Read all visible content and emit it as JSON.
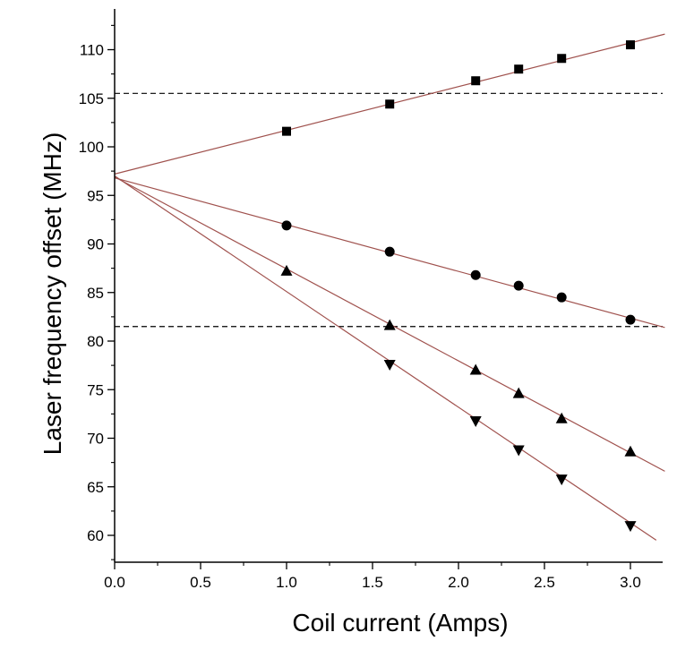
{
  "chart_data": {
    "type": "scatter",
    "title": "",
    "xlabel": "Coil current (Amps)",
    "ylabel": "Laser frequency offset (MHz)",
    "xlim": [
      0.0,
      3.2
    ],
    "ylim": [
      57.5,
      112.5
    ],
    "x_ticks": [
      "0.0",
      "0.5",
      "1.0",
      "1.5",
      "2.0",
      "2.5",
      "3.0"
    ],
    "y_ticks": [
      "60",
      "65",
      "70",
      "75",
      "80",
      "85",
      "90",
      "95",
      "100",
      "105",
      "110"
    ],
    "grid": false,
    "legend": "none",
    "reference_lines": [
      {
        "name": "upper-dashed-line",
        "y": 105.5,
        "style": "dashed"
      },
      {
        "name": "lower-dashed-line",
        "y": 81.5,
        "style": "dashed"
      }
    ],
    "series": [
      {
        "name": "squares",
        "marker": "square",
        "x": [
          1.0,
          1.6,
          2.1,
          2.35,
          2.6,
          3.0
        ],
        "y": [
          101.6,
          104.4,
          106.8,
          108.0,
          109.1,
          110.5
        ],
        "fit": {
          "x0": 0.0,
          "y0": 97.2,
          "x1": 3.2,
          "y1": 111.6
        }
      },
      {
        "name": "circles",
        "marker": "circle",
        "x": [
          1.0,
          1.6,
          2.1,
          2.35,
          2.6,
          3.0
        ],
        "y": [
          91.9,
          89.2,
          86.8,
          85.7,
          84.5,
          82.2
        ],
        "fit": {
          "x0": 0.0,
          "y0": 96.8,
          "x1": 3.2,
          "y1": 81.4
        }
      },
      {
        "name": "up-triangles",
        "marker": "triangle-up",
        "x": [
          1.0,
          1.6,
          2.1,
          2.35,
          2.6,
          3.0
        ],
        "y": [
          87.2,
          81.6,
          77.0,
          74.6,
          72.0,
          68.6
        ],
        "fit": {
          "x0": 0.0,
          "y0": 96.9,
          "x1": 3.2,
          "y1": 66.6
        }
      },
      {
        "name": "down-triangles",
        "marker": "triangle-down",
        "x": [
          1.6,
          2.1,
          2.35,
          2.6,
          3.0
        ],
        "y": [
          77.6,
          71.8,
          68.8,
          65.8,
          61.0
        ],
        "fit": {
          "x0": 0.0,
          "y0": 97.0,
          "x1": 3.15,
          "y1": 59.5
        }
      }
    ],
    "colors": {
      "fit_line": "#a0524e",
      "marker": "#000000",
      "axis": "#000000"
    }
  }
}
